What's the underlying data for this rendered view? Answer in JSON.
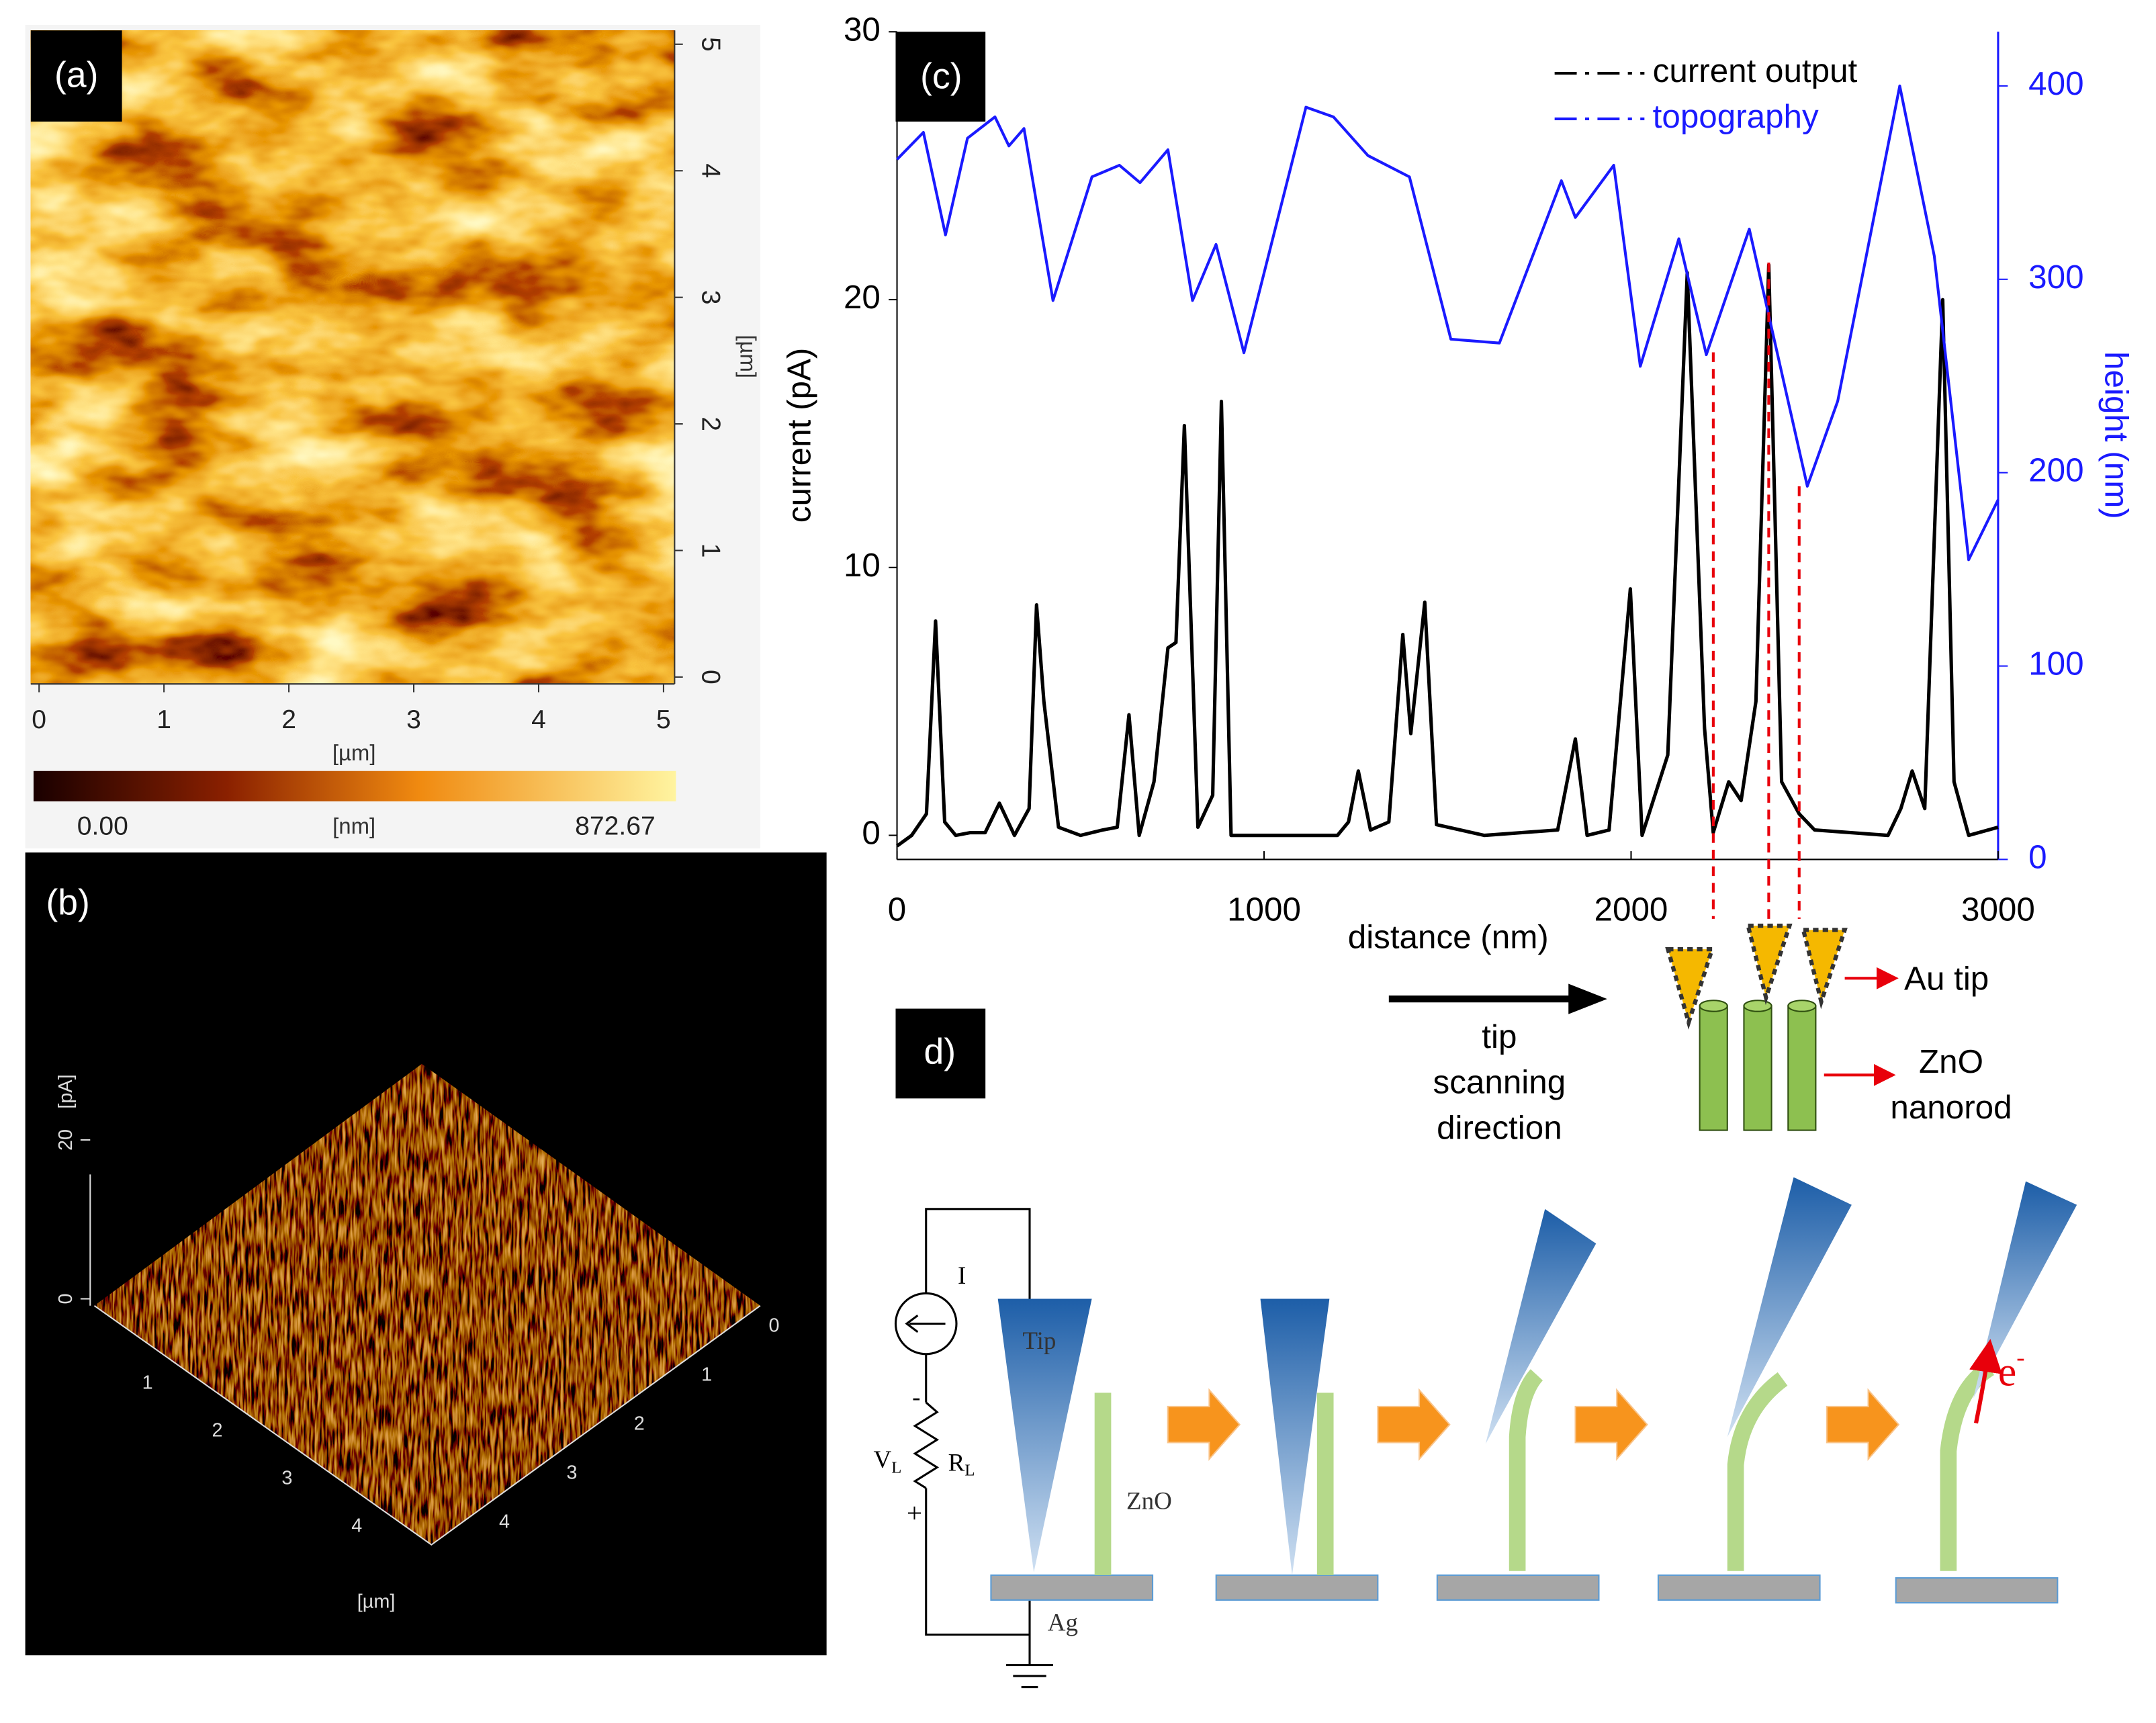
{
  "panels": {
    "a": {
      "label": "(a)",
      "x_ticks": [
        0,
        1,
        2,
        3,
        4,
        5
      ],
      "y_ticks": [
        0,
        1,
        2,
        3,
        4,
        5
      ],
      "x_axis_label": "[µm]",
      "y_axis_label": "[µm]",
      "colorbar_min": "0.00",
      "colorbar_unit": "[nm]",
      "colorbar_max": "872.67"
    },
    "b": {
      "label": "(b)",
      "z_ticks": [
        0,
        20
      ],
      "z_axis_label": "[pA]",
      "left_ticks": [
        1,
        2,
        3,
        4
      ],
      "right_ticks": [
        0,
        1,
        2,
        3,
        4
      ],
      "axis_label": "[µm]"
    },
    "d": {
      "label": "d)",
      "tip_label": "Au tip",
      "rod_label_1": "ZnO",
      "rod_label_2": "nanorod",
      "scan_1": "tip",
      "scan_2": "scanning",
      "scan_3": "direction",
      "circuit_current": "I",
      "circuit_tip": "Tip",
      "circuit_rod": "ZnO",
      "circuit_substrate": "Ag",
      "voltage": {
        "main": "V",
        "sub": "L"
      },
      "resistor": {
        "main": "R",
        "sub": "L"
      },
      "minus": "-",
      "plus": "+",
      "electron": {
        "main": "e",
        "sup": "-"
      }
    }
  },
  "chart_data": {
    "type": "line",
    "panel_label": "(c)",
    "x_label": "distance (nm)",
    "y_label": "current (pA)",
    "y2_label": "height (nm)",
    "xlim": [
      0,
      3000
    ],
    "xticks": [
      0,
      1000,
      2000,
      3000
    ],
    "ylim": [
      -0.9,
      30
    ],
    "yticks": [
      0,
      10,
      20,
      30
    ],
    "y2lim": [
      0,
      428
    ],
    "y2ticks": [
      0,
      100,
      200,
      300,
      400
    ],
    "legend": "upper right",
    "series": [
      {
        "name": "current output",
        "color": "#000000",
        "x": [
          0,
          40,
          80,
          105,
          130,
          160,
          200,
          240,
          279,
          320,
          360,
          380,
          400,
          440,
          500,
          560,
          600,
          632,
          660,
          700,
          738,
          760,
          783,
          820,
          860,
          884,
          910,
          1000,
          1100,
          1200,
          1230,
          1257,
          1290,
          1340,
          1378,
          1400,
          1438,
          1470,
          1600,
          1800,
          1848,
          1880,
          1940,
          1998,
          2030,
          2100,
          2153,
          2200,
          2224,
          2266,
          2300,
          2340,
          2375,
          2410,
          2458,
          2500,
          2700,
          2735,
          2766,
          2800,
          2849,
          2880,
          2920,
          3000
        ],
        "values": [
          -0.4,
          0,
          0.8,
          8,
          0.5,
          0,
          0.1,
          0.1,
          1.2,
          0,
          1,
          8.6,
          5,
          0.3,
          0,
          0.2,
          0.3,
          4.5,
          0,
          2,
          7,
          7.2,
          15.3,
          0.3,
          1.5,
          16.2,
          0,
          0,
          0,
          0,
          0.5,
          2.4,
          0.2,
          0.5,
          7.5,
          3.8,
          8.7,
          0.4,
          0,
          0.2,
          3.6,
          0,
          0.2,
          9.2,
          0,
          3,
          21,
          4,
          0.1,
          2,
          1.3,
          5,
          21.3,
          2,
          0.8,
          0.2,
          0,
          1,
          2.4,
          1,
          20,
          2,
          0,
          0.3
        ]
      },
      {
        "name": "topography",
        "color": "#1a1aff",
        "axis": "y2",
        "x": [
          0,
          72,
          132,
          192,
          267,
          305,
          346,
          425,
          531,
          606,
          662,
          738,
          805,
          869,
          945,
          1114,
          1189,
          1283,
          1396,
          1509,
          1641,
          1810,
          1848,
          1953,
          2025,
          2130,
          2205,
          2322,
          2480,
          2563,
          2732,
          2826,
          2920,
          3000
        ],
        "values": [
          362,
          376,
          323,
          373,
          384,
          369,
          378,
          289,
          353,
          359,
          350,
          367,
          289,
          318,
          262,
          389,
          384,
          364,
          353,
          269,
          267,
          351,
          332,
          359,
          255,
          321,
          261,
          326,
          193,
          237,
          400,
          312,
          155,
          186
        ]
      }
    ],
    "dashed_lines_x": [
      2224,
      2375,
      2458
    ],
    "dashed_color": "#e8000b"
  }
}
